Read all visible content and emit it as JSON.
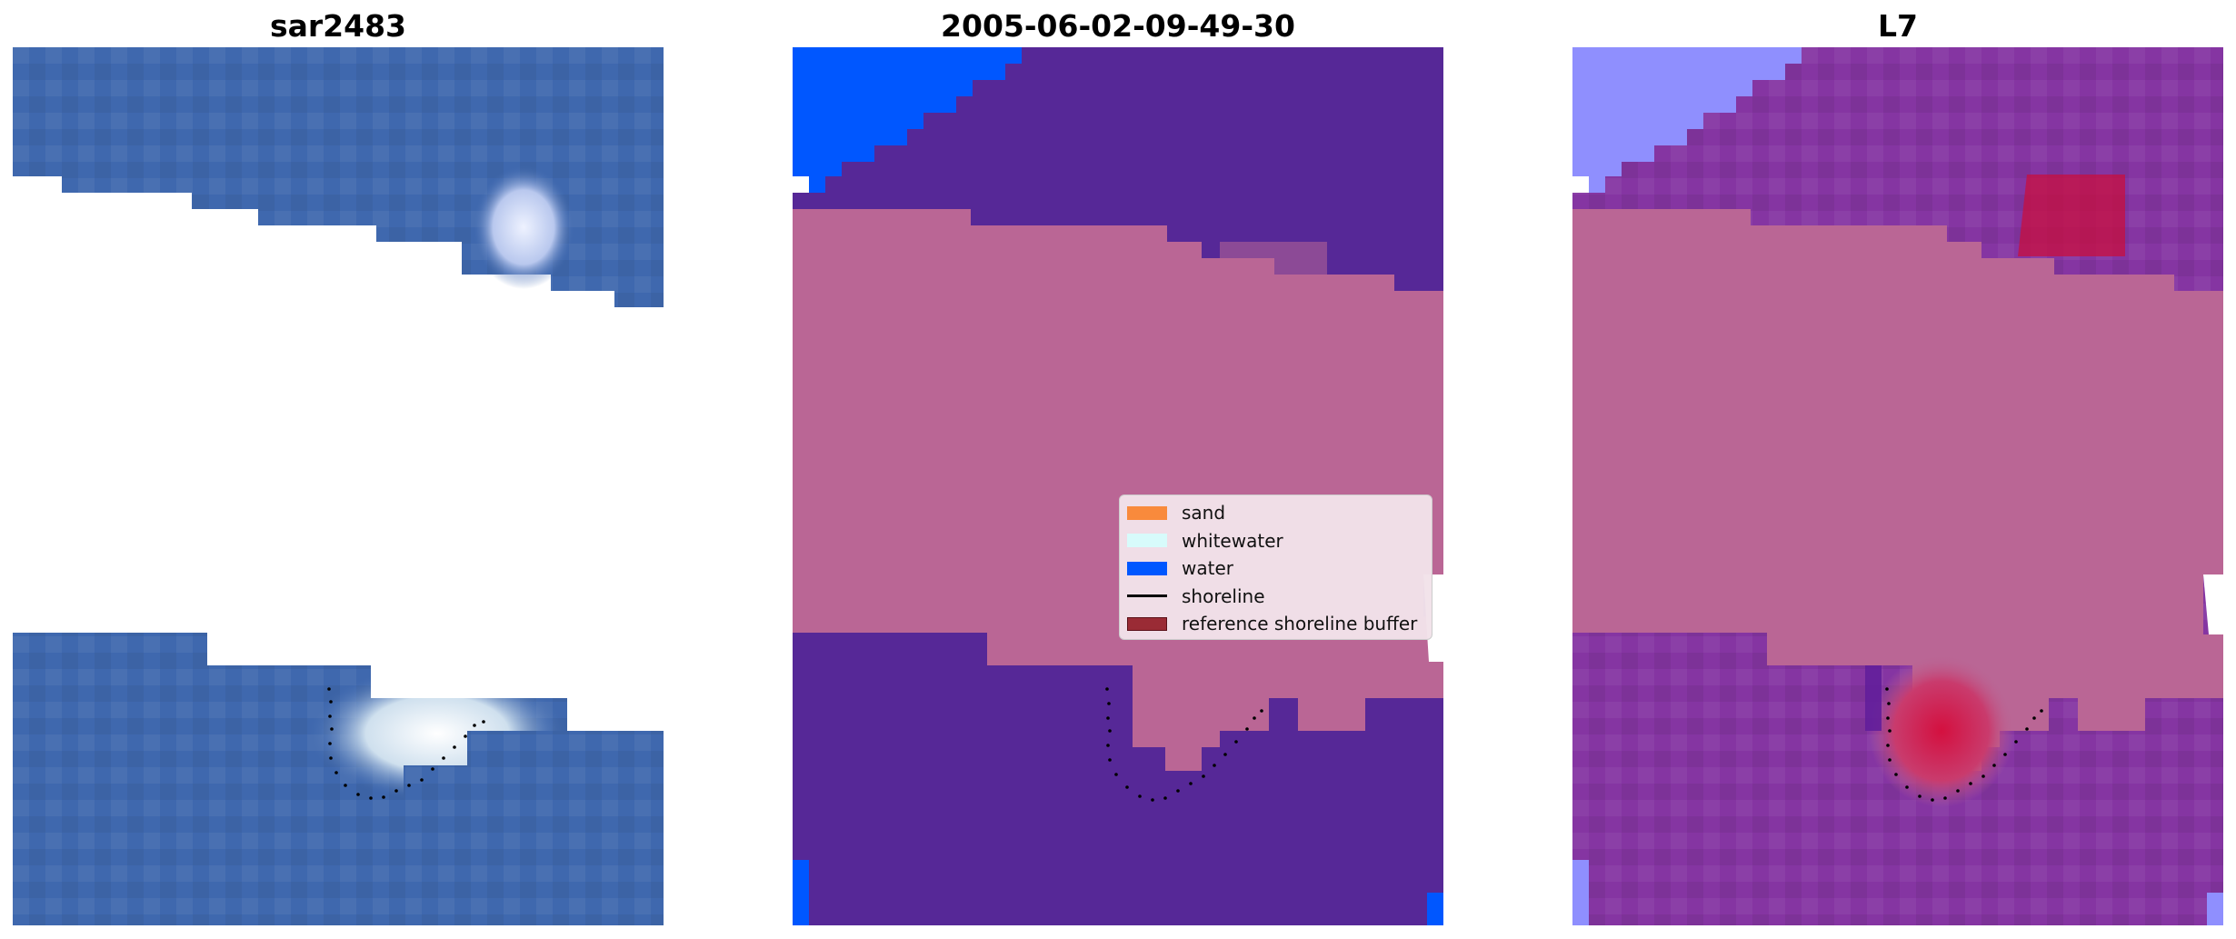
{
  "panels": [
    {
      "title": "sar2483"
    },
    {
      "title": "2005-06-02-09-49-30"
    },
    {
      "title": "L7"
    }
  ],
  "legend": {
    "items": [
      {
        "label": "sand",
        "color": "#f98a3c",
        "kind": "patch"
      },
      {
        "label": "whitewater",
        "color": "#d7fbfb",
        "kind": "patch"
      },
      {
        "label": "water",
        "color": "#0057ff",
        "kind": "patch"
      },
      {
        "label": "shoreline",
        "color": "#000000",
        "kind": "line"
      },
      {
        "label": "reference shoreline buffer",
        "color": "#9a2b35",
        "kind": "patch"
      }
    ]
  },
  "colors": {
    "background": "#ffffff",
    "sar_water": "#3f68ae",
    "classified_water": "#562897",
    "classified_land": "#ba6695",
    "classified_blue": "#0057ff",
    "l7_water": "#8535a2",
    "l7_land": "#ba6695",
    "l7_blue": "#8f8ffe",
    "l7_red": "#c80f3e",
    "shoreline": "#000000"
  }
}
